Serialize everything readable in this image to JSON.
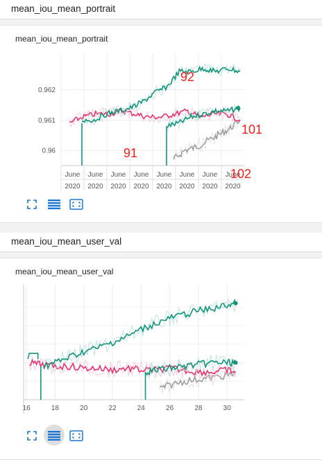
{
  "sections": [
    {
      "header": "mean_iou_mean_portrait",
      "card_title": "mean_iou_mean_portrait",
      "chart_data": {
        "type": "line",
        "title": "mean_iou_mean_portrait",
        "x_ticks": [
          {
            "top": "June",
            "bottom": "2020"
          },
          {
            "top": "June",
            "bottom": "2020"
          },
          {
            "top": "June",
            "bottom": "2020"
          },
          {
            "top": "June",
            "bottom": "2020"
          },
          {
            "top": "June",
            "bottom": "2020"
          },
          {
            "top": "June",
            "bottom": "2020"
          },
          {
            "top": "June",
            "bottom": "2020"
          },
          {
            "top": "June",
            "bottom": "2020"
          }
        ],
        "y_ticks": [
          "0.962",
          "0.961",
          "0.96"
        ],
        "ylim": [
          0.9595,
          0.9632
        ],
        "grid": true,
        "annotations": [
          "92",
          "101",
          "91",
          "102"
        ],
        "series": [
          {
            "name": "91",
            "color": "#e8336f",
            "values": [
              0.9609,
              0.9611,
              0.9612,
              0.9612,
              0.9613,
              0.9612,
              0.9611,
              0.9611,
              0.9612,
              0.9613,
              0.9611,
              0.9612,
              0.9612,
              0.961
            ]
          },
          {
            "name": "92",
            "color": "#10947a",
            "values": [
              0.961,
              0.961,
              0.9612,
              0.9613,
              0.9614,
              0.9616,
              0.9619,
              0.9621,
              0.9626,
              0.9626,
              0.9627,
              0.9626,
              0.9627,
              0.9626
            ]
          },
          {
            "name": "101",
            "color": "#10947a",
            "values": [
              0.9608,
              0.9609,
              0.9611,
              0.9612,
              0.9613,
              0.9613,
              0.9614
            ]
          },
          {
            "name": "102",
            "color": "#9e9e9e",
            "values": [
              0.9597,
              0.96,
              0.9601,
              0.9603,
              0.9605,
              0.9607,
              0.961
            ]
          }
        ]
      }
    },
    {
      "header": "mean_iou_mean_user_val",
      "card_title": "mean_iou_mean_user_val",
      "chart_data": {
        "type": "line",
        "title": "mean_iou_mean_user_val",
        "x_ticks": [
          "16",
          "18",
          "20",
          "22",
          "24",
          "26",
          "28",
          "30"
        ],
        "xlim": [
          15.8,
          31.2
        ],
        "grid": true,
        "series": [
          {
            "name": "",
            "color": "#e8336f",
            "x": [
              16.2,
              17,
              18,
              19,
              20,
              21,
              22,
              23,
              24,
              25,
              26,
              27,
              28,
              29,
              30,
              30.6
            ],
            "values": [
              0.5,
              0.49,
              0.48,
              0.48,
              0.47,
              0.47,
              0.46,
              0.47,
              0.46,
              0.46,
              0.47,
              0.46,
              0.45,
              0.45,
              0.46,
              0.45
            ]
          },
          {
            "name": "",
            "color": "#10947a",
            "x": [
              17.2,
              18,
              19,
              20,
              21,
              22,
              23,
              24,
              25,
              26,
              27,
              28,
              29,
              30,
              30.6
            ],
            "values": [
              0.48,
              0.5,
              0.53,
              0.56,
              0.58,
              0.61,
              0.64,
              0.68,
              0.71,
              0.74,
              0.76,
              0.78,
              0.79,
              0.81,
              0.82
            ]
          },
          {
            "name": "",
            "color": "#10947a",
            "x": [
              24.3,
              25,
              26,
              27,
              28,
              29,
              30,
              30.6
            ],
            "values": [
              0.45,
              0.46,
              0.47,
              0.48,
              0.49,
              0.5,
              0.5,
              0.5
            ]
          },
          {
            "name": "",
            "color": "#9e9e9e",
            "x": [
              25.3,
              26,
              27,
              28,
              29,
              30,
              30.6
            ],
            "values": [
              0.36,
              0.38,
              0.4,
              0.41,
              0.42,
              0.43,
              0.44
            ]
          }
        ]
      }
    }
  ],
  "toolbar": {
    "fullscreen_icon": "fullscreen-icon",
    "data_table_icon": "data-table-icon",
    "fit_domain_icon": "fit-domain-icon"
  },
  "colors": {
    "accent": "#1976d2",
    "pink": "#e8336f",
    "teal": "#10947a",
    "gray": "#9e9e9e",
    "annotation": "#ff1a1a"
  }
}
